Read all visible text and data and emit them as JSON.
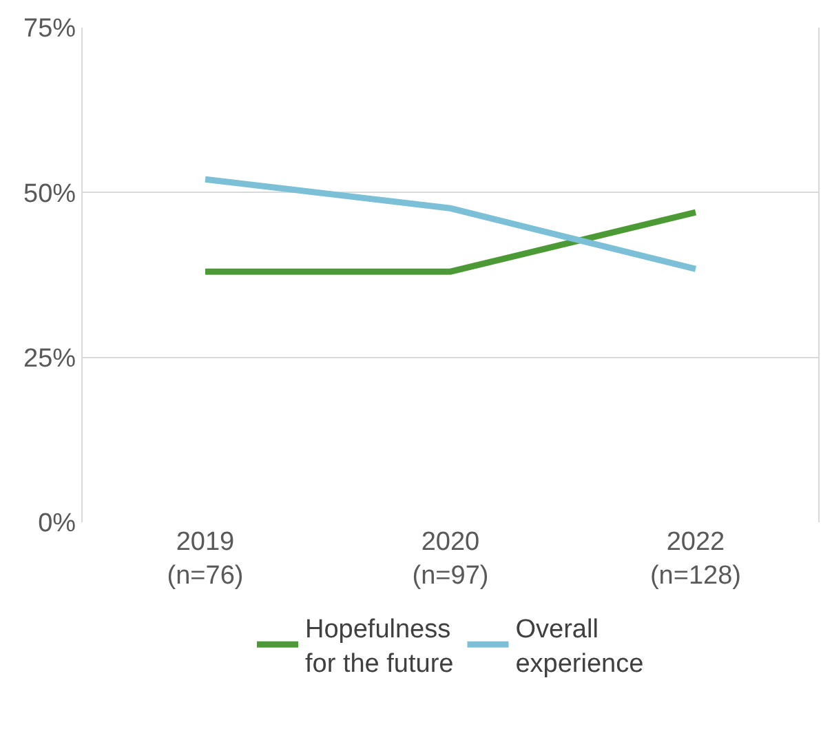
{
  "chart_data": {
    "type": "line",
    "categories": [
      "2019\n(n=76)",
      "2020\n(n=97)",
      "2022\n(n=128)"
    ],
    "series": [
      {
        "name": "Hopefulness\nfor the future",
        "color": "#4c9a35",
        "values": [
          38,
          38,
          47
        ]
      },
      {
        "name": "Overall\nexperience",
        "color": "#7cc0d8",
        "values": [
          52,
          47.6,
          38.4
        ]
      }
    ],
    "ylim": [
      0,
      75
    ],
    "yticks": [
      {
        "value": 0,
        "label": "0%"
      },
      {
        "value": 25,
        "label": "25%"
      },
      {
        "value": 50,
        "label": "50%"
      },
      {
        "value": 75,
        "label": "75%"
      }
    ],
    "grid": "y",
    "legend": "bottom",
    "marker": "none",
    "line_style": "solid"
  }
}
